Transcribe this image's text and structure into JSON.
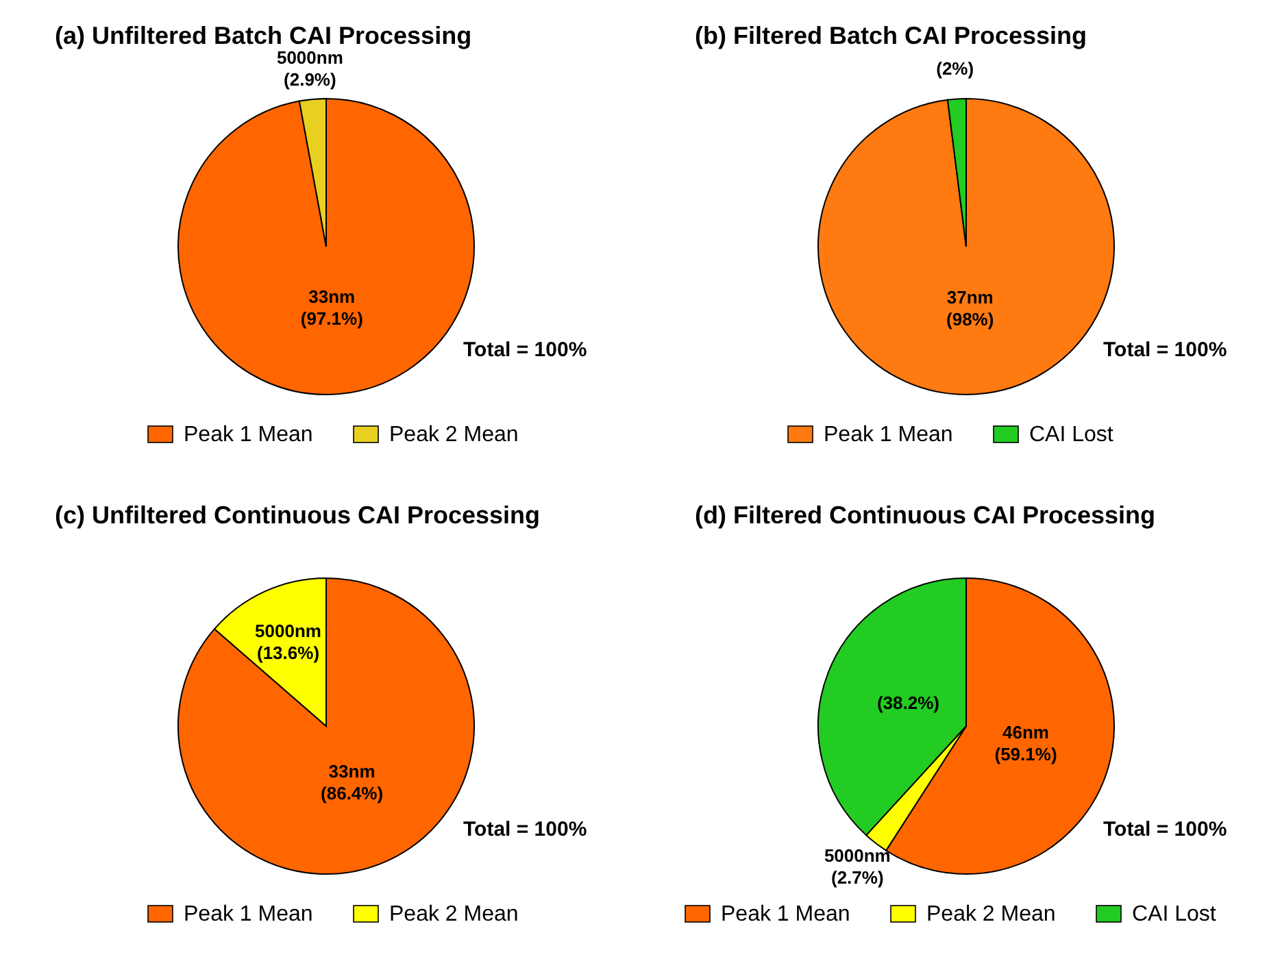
{
  "chart_data": [
    {
      "type": "pie",
      "title": "(a)  Unfiltered Batch CAI Processing",
      "categories": [
        "Peak 1 Mean",
        "Peak 2 Mean"
      ],
      "values": [
        97.1,
        2.9
      ],
      "colors": [
        "#ff6600",
        "#e8d020"
      ],
      "value_labels": [
        "33nm\n(97.1%)",
        "5000nm\n(2.9%)"
      ],
      "annotations": [
        "Total = 100%"
      ],
      "legend": "bottom"
    },
    {
      "type": "pie",
      "title": "(b)  Filtered Batch CAI Processing",
      "categories": [
        "Peak 1 Mean",
        "CAI Lost"
      ],
      "values": [
        98,
        2
      ],
      "colors": [
        "#ff7a10",
        "#22cc22"
      ],
      "value_labels": [
        "37nm\n(98%)",
        "(2%)"
      ],
      "annotations": [
        "Total = 100%"
      ],
      "legend": "bottom"
    },
    {
      "type": "pie",
      "title": "(c)  Unfiltered Continuous CAI Processing",
      "categories": [
        "Peak 1 Mean",
        "Peak 2 Mean"
      ],
      "values": [
        86.4,
        13.6
      ],
      "colors": [
        "#ff6600",
        "#ffff00"
      ],
      "value_labels": [
        "33nm\n(86.4%)",
        "5000nm\n(13.6%)"
      ],
      "annotations": [
        "Total = 100%"
      ],
      "legend": "bottom"
    },
    {
      "type": "pie",
      "title": "(d)  Filtered Continuous CAI Processing",
      "categories": [
        "Peak 1 Mean",
        "Peak 2 Mean",
        "CAI Lost"
      ],
      "values": [
        59.1,
        2.7,
        38.2
      ],
      "colors": [
        "#ff6600",
        "#ffff00",
        "#22cc22"
      ],
      "value_labels": [
        "46nm\n(59.1%)",
        "5000nm\n(2.7%)",
        "(38.2%)"
      ],
      "annotations": [
        "Total = 100%"
      ],
      "legend": "bottom"
    }
  ]
}
